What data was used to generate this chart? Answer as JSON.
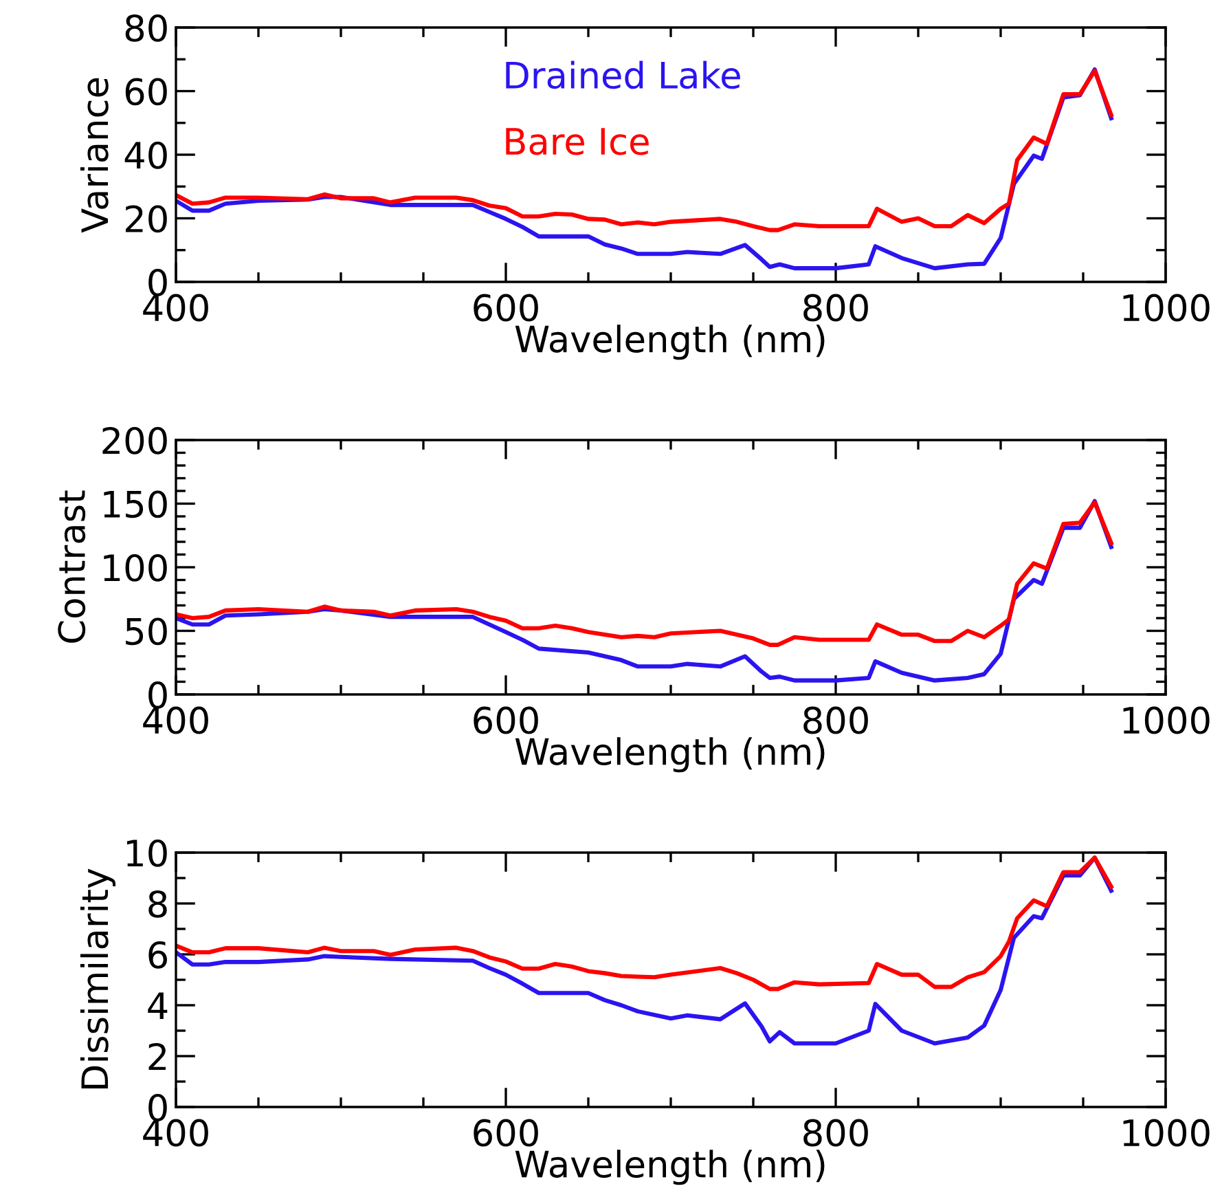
{
  "chart_data": [
    {
      "type": "line",
      "xlabel": "Wavelength (nm)",
      "ylabel": "Variance",
      "xlim": [
        400,
        1000
      ],
      "ylim": [
        0,
        80
      ],
      "xticks": [
        400,
        {
          "value": 450,
          "label": null
        },
        {
          "value": 500,
          "label": null
        },
        {
          "value": 550,
          "label": null
        },
        600,
        {
          "value": 650,
          "label": null
        },
        {
          "value": 700,
          "label": null
        },
        {
          "value": 750,
          "label": null
        },
        800,
        {
          "value": 850,
          "label": null
        },
        {
          "value": 900,
          "label": null
        },
        {
          "value": 950,
          "label": null
        },
        1000
      ],
      "yticks": [
        0,
        {
          "value": 10,
          "label": null
        },
        20,
        {
          "value": 30,
          "label": null
        },
        40,
        {
          "value": 50,
          "label": null
        },
        60,
        {
          "value": 70,
          "label": null
        },
        80
      ],
      "legend": "top",
      "grid": false,
      "series": [
        {
          "name": "Drained Lake",
          "color": "#2b14f0",
          "x": [
            400,
            410,
            420,
            430,
            450,
            480,
            490,
            500,
            530,
            580,
            590,
            600,
            610,
            620,
            650,
            660,
            670,
            680,
            700,
            710,
            730,
            745,
            755,
            760,
            766,
            775,
            800,
            820,
            824,
            840,
            860,
            880,
            890,
            900,
            908,
            920,
            925,
            938,
            948,
            957,
            967
          ],
          "values": [
            25.5,
            22.4,
            22.4,
            24.6,
            25.5,
            25.9,
            26.7,
            26.7,
            24.2,
            24.2,
            22,
            19.8,
            17.3,
            14.3,
            14.3,
            11.8,
            10.5,
            8.8,
            8.8,
            9.4,
            8.8,
            11.6,
            7.1,
            4.7,
            5.5,
            4.3,
            4.3,
            5.5,
            11.2,
            7.5,
            4.3,
            5.5,
            5.7,
            13.8,
            30.8,
            39.7,
            38.7,
            58,
            58.7,
            66.8,
            51.5
          ]
        },
        {
          "name": "Bare Ice",
          "color": "#ff0000",
          "x": [
            400,
            410,
            420,
            430,
            450,
            480,
            490,
            500,
            520,
            530,
            545,
            570,
            580,
            590,
            600,
            610,
            620,
            630,
            640,
            650,
            660,
            670,
            680,
            690,
            700,
            730,
            740,
            750,
            760,
            765,
            775,
            790,
            820,
            825,
            840,
            850,
            860,
            870,
            880,
            890,
            900,
            905,
            910,
            920,
            928,
            938,
            948,
            957,
            967
          ],
          "values": [
            27.3,
            24.6,
            25,
            26.5,
            26.5,
            26,
            27.5,
            26.3,
            26.3,
            25,
            26.5,
            26.5,
            25.7,
            24,
            23.2,
            20.6,
            20.6,
            21.4,
            21.2,
            19.8,
            19.6,
            18.1,
            18.7,
            18.1,
            18.9,
            19.8,
            18.9,
            17.5,
            16.3,
            16.3,
            18.1,
            17.5,
            17.5,
            23,
            18.9,
            20,
            17.5,
            17.5,
            21,
            18.5,
            23,
            24.6,
            38.3,
            45.4,
            43.4,
            59,
            59,
            66.4,
            52.5
          ]
        }
      ]
    },
    {
      "type": "line",
      "xlabel": "Wavelength (nm)",
      "ylabel": "Contrast",
      "xlim": [
        400,
        1000
      ],
      "ylim": [
        0,
        200
      ],
      "xticks": [
        400,
        {
          "value": 450,
          "label": null
        },
        {
          "value": 500,
          "label": null
        },
        {
          "value": 550,
          "label": null
        },
        600,
        {
          "value": 650,
          "label": null
        },
        {
          "value": 700,
          "label": null
        },
        {
          "value": 750,
          "label": null
        },
        800,
        {
          "value": 850,
          "label": null
        },
        {
          "value": 900,
          "label": null
        },
        {
          "value": 950,
          "label": null
        },
        1000
      ],
      "yticks": [
        0,
        {
          "value": 10,
          "label": null
        },
        {
          "value": 20,
          "label": null
        },
        {
          "value": 30,
          "label": null
        },
        {
          "value": 40,
          "label": null
        },
        50,
        {
          "value": 60,
          "label": null
        },
        {
          "value": 70,
          "label": null
        },
        {
          "value": 80,
          "label": null
        },
        {
          "value": 90,
          "label": null
        },
        100,
        {
          "value": 110,
          "label": null
        },
        {
          "value": 120,
          "label": null
        },
        {
          "value": 130,
          "label": null
        },
        {
          "value": 140,
          "label": null
        },
        150,
        {
          "value": 160,
          "label": null
        },
        {
          "value": 170,
          "label": null
        },
        {
          "value": 180,
          "label": null
        },
        {
          "value": 190,
          "label": null
        },
        200
      ],
      "grid": false,
      "series": [
        {
          "color": "#2b14f0",
          "x": [
            400,
            410,
            420,
            430,
            450,
            480,
            490,
            500,
            530,
            580,
            590,
            600,
            610,
            620,
            650,
            660,
            670,
            680,
            700,
            710,
            730,
            745,
            755,
            760,
            766,
            775,
            800,
            820,
            824,
            840,
            860,
            880,
            890,
            900,
            908,
            920,
            925,
            938,
            948,
            957,
            967
          ],
          "values": [
            60,
            55,
            55,
            62,
            63,
            65,
            67,
            66,
            61,
            61,
            55,
            49,
            43,
            36,
            33,
            30,
            27,
            22,
            22,
            24,
            22,
            30,
            18,
            13,
            14,
            11,
            11,
            13,
            26,
            17,
            11,
            13,
            16,
            32,
            75,
            90,
            87,
            131,
            131,
            152,
            116
          ]
        },
        {
          "color": "#ff0000",
          "x": [
            400,
            410,
            420,
            430,
            450,
            480,
            490,
            500,
            520,
            530,
            545,
            570,
            580,
            590,
            600,
            610,
            620,
            630,
            640,
            650,
            660,
            670,
            680,
            690,
            700,
            730,
            740,
            750,
            760,
            765,
            775,
            790,
            820,
            825,
            840,
            850,
            860,
            870,
            880,
            890,
            900,
            905,
            910,
            920,
            928,
            938,
            948,
            957,
            967
          ],
          "values": [
            63,
            60,
            61,
            66,
            67,
            65,
            69,
            66,
            65,
            62,
            66,
            67,
            65,
            61,
            58,
            52,
            52,
            54,
            52,
            49,
            47,
            45,
            46,
            45,
            48,
            50,
            47,
            44,
            39,
            39,
            45,
            43,
            43,
            55,
            47,
            47,
            42,
            42,
            50,
            45,
            54,
            59,
            87,
            103,
            99,
            134,
            135,
            151,
            119
          ]
        }
      ]
    },
    {
      "type": "line",
      "xlabel": "Wavelength (nm)",
      "ylabel": "Dissimilarity",
      "xlim": [
        400,
        1000
      ],
      "ylim": [
        0,
        10
      ],
      "xticks": [
        400,
        {
          "value": 450,
          "label": null
        },
        {
          "value": 500,
          "label": null
        },
        {
          "value": 550,
          "label": null
        },
        600,
        {
          "value": 650,
          "label": null
        },
        {
          "value": 700,
          "label": null
        },
        {
          "value": 750,
          "label": null
        },
        800,
        {
          "value": 850,
          "label": null
        },
        {
          "value": 900,
          "label": null
        },
        {
          "value": 950,
          "label": null
        },
        1000
      ],
      "yticks": [
        0,
        {
          "value": 1,
          "label": null
        },
        2,
        {
          "value": 3,
          "label": null
        },
        4,
        {
          "value": 5,
          "label": null
        },
        6,
        {
          "value": 7,
          "label": null
        },
        8,
        {
          "value": 9,
          "label": null
        },
        10
      ],
      "grid": false,
      "series": [
        {
          "color": "#2b14f0",
          "x": [
            400,
            410,
            420,
            430,
            450,
            480,
            490,
            500,
            530,
            580,
            590,
            600,
            610,
            620,
            650,
            660,
            670,
            680,
            700,
            710,
            730,
            745,
            755,
            760,
            766,
            775,
            800,
            820,
            824,
            840,
            860,
            880,
            890,
            900,
            908,
            920,
            925,
            938,
            948,
            957,
            967
          ],
          "values": [
            6.08,
            5.6,
            5.6,
            5.7,
            5.7,
            5.8,
            5.93,
            5.9,
            5.82,
            5.75,
            5.46,
            5.2,
            4.85,
            4.48,
            4.48,
            4.2,
            4.0,
            3.76,
            3.48,
            3.6,
            3.45,
            4.07,
            3.17,
            2.58,
            2.94,
            2.5,
            2.5,
            3.0,
            4.05,
            3.0,
            2.5,
            2.73,
            3.2,
            4.6,
            6.65,
            7.5,
            7.42,
            9.1,
            9.1,
            9.8,
            8.5
          ]
        },
        {
          "color": "#ff0000",
          "x": [
            400,
            410,
            420,
            430,
            450,
            480,
            490,
            500,
            520,
            530,
            545,
            570,
            580,
            590,
            600,
            610,
            620,
            630,
            640,
            650,
            660,
            670,
            680,
            690,
            700,
            730,
            740,
            750,
            760,
            765,
            775,
            790,
            820,
            825,
            840,
            850,
            860,
            870,
            880,
            890,
            900,
            905,
            910,
            920,
            928,
            938,
            948,
            957,
            967
          ],
          "values": [
            6.34,
            6.08,
            6.08,
            6.24,
            6.24,
            6.08,
            6.26,
            6.13,
            6.13,
            5.98,
            6.19,
            6.26,
            6.13,
            5.88,
            5.72,
            5.44,
            5.44,
            5.62,
            5.52,
            5.34,
            5.26,
            5.15,
            5.12,
            5.1,
            5.2,
            5.46,
            5.26,
            5.0,
            4.64,
            4.64,
            4.9,
            4.82,
            4.87,
            5.62,
            5.2,
            5.2,
            4.72,
            4.72,
            5.1,
            5.3,
            5.93,
            6.5,
            7.42,
            8.12,
            7.89,
            9.23,
            9.23,
            9.8,
            8.66
          ]
        }
      ]
    }
  ]
}
